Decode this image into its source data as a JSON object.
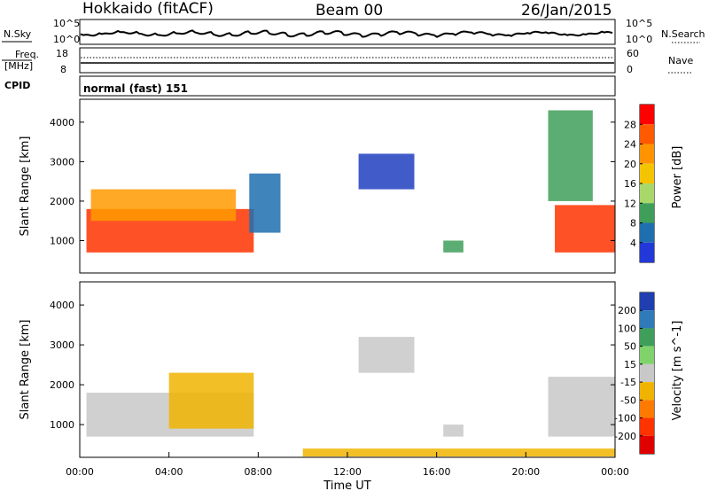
{
  "header": {
    "station": "Hokkaido (fitACF)",
    "beam": "Beam 00",
    "date": "26/Jan/2015"
  },
  "strip_panels": {
    "noise_sky_label": "N.Sky",
    "noise_search_label": "N.Search",
    "noise_left_ticks": [
      "10^5",
      "10^0"
    ],
    "noise_right_ticks": [
      "10^5",
      "10^0"
    ],
    "freq_label_line1": "Freq.",
    "freq_label_line2": "[MHz]",
    "freq_ticks": [
      "18",
      "8"
    ],
    "nave_label": "Nave",
    "nave_ticks": [
      "60",
      "0"
    ],
    "cpid_label": "CPID",
    "cpid_value": "normal (fast) 151"
  },
  "chart_data": [
    {
      "type": "heatmap",
      "panel": "power",
      "ylabel": "Slant Range [km]",
      "xlabel": "",
      "y_ticks": [
        "4000",
        "3000",
        "2000",
        "1000"
      ],
      "ylim": [
        180,
        4580
      ],
      "xlim_hours": [
        0,
        24
      ],
      "colorbar_label": "Power [dB]",
      "colorbar_ticks": [
        "28",
        "24",
        "20",
        "16",
        "12",
        "8",
        "4"
      ],
      "colorbar_colors": [
        "#ff0000",
        "#ff5a00",
        "#ff9400",
        "#f5c400",
        "#a8d86a",
        "#3f9f5a",
        "#1f6fb0",
        "#2238d8"
      ],
      "regions": [
        {
          "t0": 0.3,
          "t1": 7.8,
          "r0": 700,
          "r1": 1800,
          "color": "#ff3300"
        },
        {
          "t0": 0.5,
          "t1": 7.0,
          "r0": 1500,
          "r1": 2300,
          "color": "#ff9a00"
        },
        {
          "t0": 7.6,
          "t1": 9.0,
          "r0": 1200,
          "r1": 2700,
          "color": "#1f6fb0"
        },
        {
          "t0": 12.5,
          "t1": 15.0,
          "r0": 2300,
          "r1": 3200,
          "color": "#2040c0"
        },
        {
          "t0": 16.3,
          "t1": 17.2,
          "r0": 700,
          "r1": 1000,
          "color": "#3f9f5a"
        },
        {
          "t0": 21.3,
          "t1": 24.0,
          "r0": 700,
          "r1": 1900,
          "color": "#ff3300"
        },
        {
          "t0": 21.0,
          "t1": 23.0,
          "r0": 2000,
          "r1": 4300,
          "color": "#3f9f5a"
        }
      ]
    },
    {
      "type": "heatmap",
      "panel": "velocity",
      "ylabel": "Slant Range [km]",
      "xlabel": "Time UT",
      "y_ticks": [
        "4000",
        "3000",
        "2000",
        "1000"
      ],
      "ylim": [
        180,
        4580
      ],
      "xlim_hours": [
        0,
        24
      ],
      "x_ticks": [
        "00:00",
        "04:00",
        "08:00",
        "12:00",
        "16:00",
        "20:00",
        "00:00"
      ],
      "colorbar_label": "Velocity [m s^-1]",
      "colorbar_ticks": [
        "200",
        "100",
        "50",
        "15",
        "-15",
        "-50",
        "-100",
        "-200"
      ],
      "colorbar_colors": [
        "#1f3fb0",
        "#2f7ab8",
        "#3f9f5a",
        "#7fd36a",
        "#c8c8c8",
        "#f0b400",
        "#ff7a00",
        "#ff3300",
        "#e00000"
      ],
      "regions": [
        {
          "t0": 0.3,
          "t1": 7.8,
          "r0": 700,
          "r1": 1800,
          "color": "#c8c8c8"
        },
        {
          "t0": 4.0,
          "t1": 7.8,
          "r0": 900,
          "r1": 2300,
          "color": "#f0b400"
        },
        {
          "t0": 12.5,
          "t1": 15.0,
          "r0": 2300,
          "r1": 3200,
          "color": "#c8c8c8"
        },
        {
          "t0": 16.3,
          "t1": 17.2,
          "r0": 700,
          "r1": 1000,
          "color": "#c8c8c8"
        },
        {
          "t0": 21.0,
          "t1": 24.0,
          "r0": 700,
          "r1": 2200,
          "color": "#c8c8c8"
        },
        {
          "t0": 10.0,
          "t1": 24.0,
          "r0": 200,
          "r1": 400,
          "color": "#f0b400"
        }
      ]
    }
  ]
}
